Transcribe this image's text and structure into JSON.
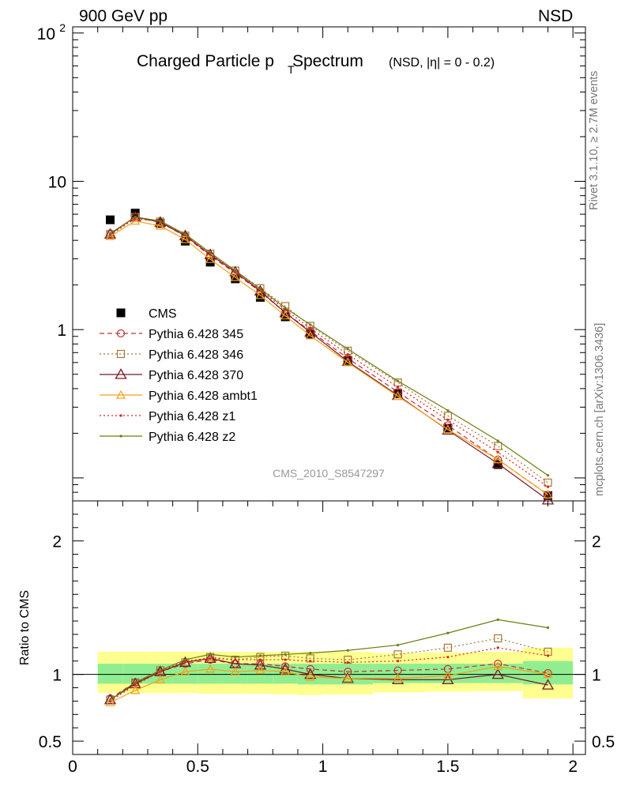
{
  "header": {
    "left": "900 GeV pp",
    "right": "NSD"
  },
  "side_labels": {
    "rivet": "Rivet 3.1.10, ≥ 2.7M events",
    "mcplots": "mcplots.cern.ch [arXiv:1306.3436]"
  },
  "title": {
    "main": "Charged Particle p",
    "sub": "T",
    "main_tail": " Spectrum",
    "note": "(NSD, |η| =   0 - 0.2)"
  },
  "watermark": "CMS_2010_S8547297",
  "colors": {
    "cms": "#000000",
    "p345": "#c0303a",
    "p346": "#a8783a",
    "p370": "#7a1a26",
    "ambt1": "#f2a21a",
    "z1": "#dd2222",
    "z2": "#6e7d12",
    "band_inner": "#90ee90",
    "band_outer": "#ffff90"
  },
  "chart_data": [
    {
      "type": "line",
      "ylog": true,
      "xlim": [
        0,
        2.05
      ],
      "ylim": [
        0.07,
        110
      ],
      "yticklabels": [
        "1",
        "10",
        "10^2"
      ],
      "legend": {
        "placement": "left-middle"
      },
      "x": [
        0.15,
        0.25,
        0.35,
        0.45,
        0.55,
        0.65,
        0.75,
        0.85,
        0.95,
        1.1,
        1.3,
        1.5,
        1.7,
        1.9
      ],
      "series": [
        {
          "name": "CMS",
          "marker": "square",
          "values": [
            5.5,
            6.1,
            5.2,
            3.95,
            2.85,
            2.2,
            1.65,
            1.22,
            0.93,
            0.62,
            0.37,
            0.216,
            0.123,
            0.076
          ]
        },
        {
          "name": "Pythia 6.428 345",
          "style": "dashed",
          "marker": "circle",
          "values": [
            4.45,
            5.7,
            5.3,
            4.25,
            3.15,
            2.4,
            1.8,
            1.3,
            0.98,
            0.64,
            0.38,
            0.226,
            0.133,
            0.077
          ]
        },
        {
          "name": "Pythia 6.428 346",
          "style": "dotted",
          "marker": "open-square",
          "values": [
            4.4,
            5.75,
            5.35,
            4.3,
            3.25,
            2.5,
            1.9,
            1.44,
            1.06,
            0.72,
            0.44,
            0.262,
            0.164,
            0.093
          ]
        },
        {
          "name": "Pythia 6.428 370",
          "style": "solid",
          "marker": "triangle",
          "values": [
            4.4,
            5.75,
            5.3,
            4.3,
            3.2,
            2.45,
            1.82,
            1.3,
            0.96,
            0.61,
            0.36,
            0.21,
            0.125,
            0.071
          ]
        },
        {
          "name": "Pythia 6.428 ambt1",
          "style": "solid",
          "marker": "open-triangle-small",
          "values": [
            4.25,
            5.4,
            5.0,
            4.05,
            2.98,
            2.25,
            1.7,
            1.24,
            0.91,
            0.6,
            0.355,
            0.212,
            0.133,
            0.077
          ]
        },
        {
          "name": "Pythia 6.428 z1",
          "style": "dotted",
          "marker": "dot",
          "values": [
            4.35,
            5.6,
            5.35,
            4.35,
            3.2,
            2.45,
            1.85,
            1.36,
            1.02,
            0.68,
            0.41,
            0.246,
            0.149,
            0.087
          ]
        },
        {
          "name": "Pythia 6.428 z2",
          "style": "solid",
          "marker": "dot",
          "values": [
            4.45,
            5.75,
            5.4,
            4.4,
            3.3,
            2.5,
            1.88,
            1.4,
            1.08,
            0.74,
            0.45,
            0.285,
            0.178,
            0.104
          ]
        }
      ]
    },
    {
      "type": "line",
      "xlim": [
        0,
        2.05
      ],
      "ylim": [
        0.4,
        2.3
      ],
      "ylabel": "Ratio to CMS",
      "xticklabels": [
        "0",
        "0.5",
        "1",
        "1.5",
        "2"
      ],
      "yticklabels": [
        "0.5",
        "1",
        "2"
      ],
      "bins": [
        [
          0.1,
          0.2
        ],
        [
          0.2,
          0.3
        ],
        [
          0.3,
          0.4
        ],
        [
          0.4,
          0.5
        ],
        [
          0.5,
          0.6
        ],
        [
          0.6,
          0.7
        ],
        [
          0.7,
          0.8
        ],
        [
          0.8,
          0.9
        ],
        [
          0.9,
          1.0
        ],
        [
          1.0,
          1.2
        ],
        [
          1.2,
          1.4
        ],
        [
          1.4,
          1.6
        ],
        [
          1.6,
          1.8
        ],
        [
          1.8,
          2.0
        ]
      ],
      "band_inner": [
        [
          0.93,
          1.08
        ],
        [
          0.93,
          1.08
        ],
        [
          0.93,
          1.08
        ],
        [
          0.93,
          1.08
        ],
        [
          0.93,
          1.08
        ],
        [
          0.93,
          1.08
        ],
        [
          0.93,
          1.08
        ],
        [
          0.93,
          1.08
        ],
        [
          0.925,
          1.08
        ],
        [
          0.925,
          1.08
        ],
        [
          0.935,
          1.08
        ],
        [
          0.935,
          1.08
        ],
        [
          0.935,
          1.08
        ],
        [
          0.925,
          1.1
        ]
      ],
      "band_outer": [
        [
          0.86,
          1.17
        ],
        [
          0.86,
          1.17
        ],
        [
          0.86,
          1.17
        ],
        [
          0.86,
          1.17
        ],
        [
          0.855,
          1.17
        ],
        [
          0.855,
          1.17
        ],
        [
          0.855,
          1.17
        ],
        [
          0.85,
          1.17
        ],
        [
          0.845,
          1.17
        ],
        [
          0.85,
          1.17
        ],
        [
          0.865,
          1.16
        ],
        [
          0.87,
          1.165
        ],
        [
          0.875,
          1.17
        ],
        [
          0.82,
          1.2
        ]
      ],
      "x": [
        0.15,
        0.25,
        0.35,
        0.45,
        0.55,
        0.65,
        0.75,
        0.85,
        0.95,
        1.1,
        1.3,
        1.5,
        1.7,
        1.9
      ],
      "series": [
        {
          "name": "Pythia 6.428 345",
          "values": [
            0.82,
            0.94,
            1.02,
            1.08,
            1.11,
            1.08,
            1.08,
            1.06,
            1.04,
            1.02,
            1.03,
            1.04,
            1.08,
            1.01
          ]
        },
        {
          "name": "Pythia 6.428 346",
          "values": [
            0.81,
            0.94,
            1.03,
            1.09,
            1.13,
            1.11,
            1.13,
            1.14,
            1.12,
            1.11,
            1.15,
            1.2,
            1.27,
            1.17
          ]
        },
        {
          "name": "Pythia 6.428 370",
          "values": [
            0.81,
            0.93,
            1.02,
            1.09,
            1.12,
            1.08,
            1.07,
            1.04,
            1.0,
            0.97,
            0.96,
            0.96,
            1.0,
            0.92
          ]
        },
        {
          "name": "Pythia 6.428 ambt1",
          "values": [
            0.79,
            0.88,
            0.96,
            1.02,
            1.04,
            1.02,
            1.03,
            1.02,
            0.98,
            0.97,
            0.97,
            0.99,
            1.06,
            1.0
          ]
        },
        {
          "name": "Pythia 6.428 z1",
          "values": [
            0.8,
            0.92,
            1.02,
            1.1,
            1.12,
            1.11,
            1.11,
            1.11,
            1.1,
            1.09,
            1.1,
            1.13,
            1.2,
            1.14
          ]
        },
        {
          "name": "Pythia 6.428 z2",
          "values": [
            0.81,
            0.94,
            1.03,
            1.11,
            1.15,
            1.13,
            1.14,
            1.15,
            1.16,
            1.18,
            1.22,
            1.31,
            1.41,
            1.35
          ]
        }
      ]
    }
  ]
}
